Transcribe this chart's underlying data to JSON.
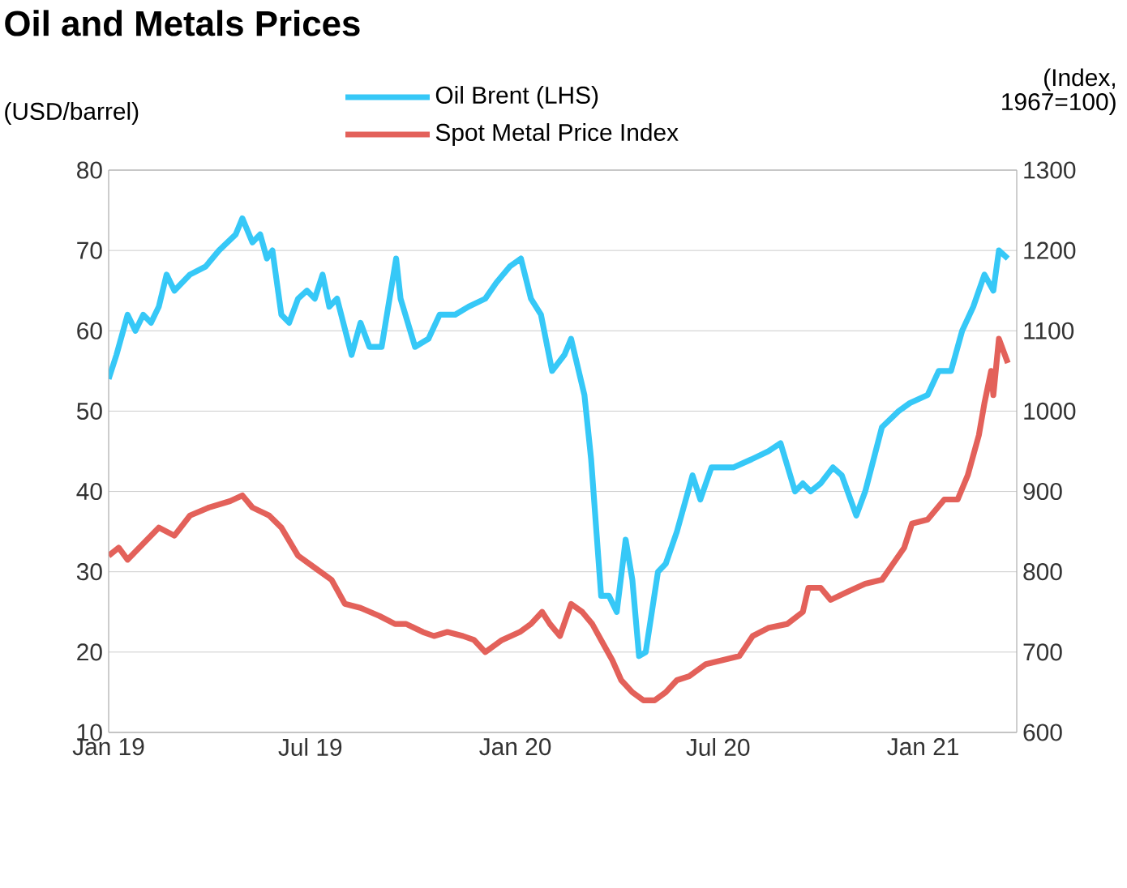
{
  "chart_data": {
    "type": "line",
    "title": "Oil and Metals Prices",
    "ylabel": "(USD/barrel)",
    "y2label": "(Index, 1967=100)",
    "legend": "top",
    "grid": "y",
    "xlim": [
      "2019-01-01",
      "2021-03-26"
    ],
    "xticks": [
      {
        "value": "2019-01-01",
        "label": "Jan 19"
      },
      {
        "value": "2019-07-01",
        "label": "Jul 19"
      },
      {
        "value": "2020-01-01",
        "label": "Jan 20"
      },
      {
        "value": "2020-07-01",
        "label": "Jul 20"
      },
      {
        "value": "2021-01-01",
        "label": "Jan 21"
      }
    ],
    "ylim": [
      10,
      80
    ],
    "yticks": [
      10,
      20,
      30,
      40,
      50,
      60,
      70,
      80
    ],
    "y2lim": [
      600,
      1300
    ],
    "y2ticks": [
      600,
      700,
      800,
      900,
      1000,
      1100,
      1200,
      1300
    ],
    "series": [
      {
        "name": "Oil Brent (LHS)",
        "color": "#36c8f7",
        "x": [
          "2019-01-01",
          "2019-01-08",
          "2019-01-18",
          "2019-01-25",
          "2019-02-01",
          "2019-02-08",
          "2019-02-15",
          "2019-02-22",
          "2019-03-01",
          "2019-03-15",
          "2019-03-29",
          "2019-04-10",
          "2019-04-25",
          "2019-05-01",
          "2019-05-10",
          "2019-05-17",
          "2019-05-23",
          "2019-05-28",
          "2019-06-05",
          "2019-06-12",
          "2019-06-20",
          "2019-06-28",
          "2019-07-05",
          "2019-07-12",
          "2019-07-18",
          "2019-07-25",
          "2019-08-07",
          "2019-08-15",
          "2019-08-23",
          "2019-09-03",
          "2019-09-16",
          "2019-09-20",
          "2019-10-03",
          "2019-10-15",
          "2019-10-25",
          "2019-11-08",
          "2019-11-20",
          "2019-12-05",
          "2019-12-15",
          "2019-12-27",
          "2020-01-06",
          "2020-01-15",
          "2020-01-24",
          "2020-02-03",
          "2020-02-14",
          "2020-02-20",
          "2020-03-03",
          "2020-03-09",
          "2020-03-18",
          "2020-03-25",
          "2020-04-01",
          "2020-04-09",
          "2020-04-15",
          "2020-04-21",
          "2020-04-27",
          "2020-05-08",
          "2020-05-15",
          "2020-05-25",
          "2020-06-08",
          "2020-06-15",
          "2020-06-25",
          "2020-07-15",
          "2020-07-31",
          "2020-08-15",
          "2020-08-26",
          "2020-09-08",
          "2020-09-15",
          "2020-09-22",
          "2020-10-01",
          "2020-10-12",
          "2020-10-20",
          "2020-11-02",
          "2020-11-10",
          "2020-11-25",
          "2020-12-10",
          "2020-12-20",
          "2021-01-05",
          "2021-01-15",
          "2021-01-26",
          "2021-02-05",
          "2021-02-15",
          "2021-02-25",
          "2021-03-05",
          "2021-03-10",
          "2021-03-18"
        ],
        "values": [
          54,
          57,
          62,
          60,
          62,
          61,
          63,
          67,
          65,
          67,
          68,
          70,
          72,
          74,
          71,
          72,
          69,
          70,
          62,
          61,
          64,
          65,
          64,
          67,
          63,
          64,
          57,
          61,
          58,
          58,
          69,
          64,
          58,
          59,
          62,
          62,
          63,
          64,
          66,
          68,
          69,
          64,
          62,
          55,
          57,
          59,
          52,
          44,
          27,
          27,
          25,
          34,
          29,
          19.5,
          20,
          30,
          31,
          35,
          42,
          39,
          43,
          43,
          44,
          45,
          46,
          40,
          41,
          40,
          41,
          43,
          42,
          37,
          40,
          48,
          50,
          51,
          52,
          55,
          55,
          60,
          63,
          67,
          65,
          70,
          69
        ]
      },
      {
        "name": "Spot Metal Price Index",
        "color": "#e3615a",
        "axis": "y2",
        "x": [
          "2019-01-01",
          "2019-01-10",
          "2019-01-18",
          "2019-02-01",
          "2019-02-15",
          "2019-03-01",
          "2019-03-15",
          "2019-04-01",
          "2019-04-20",
          "2019-05-01",
          "2019-05-10",
          "2019-05-25",
          "2019-06-05",
          "2019-06-20",
          "2019-07-05",
          "2019-07-20",
          "2019-08-01",
          "2019-08-15",
          "2019-09-01",
          "2019-09-15",
          "2019-09-25",
          "2019-10-10",
          "2019-10-20",
          "2019-11-01",
          "2019-11-15",
          "2019-11-25",
          "2019-12-05",
          "2019-12-20",
          "2020-01-05",
          "2020-01-15",
          "2020-01-25",
          "2020-02-01",
          "2020-02-10",
          "2020-02-20",
          "2020-03-01",
          "2020-03-10",
          "2020-03-20",
          "2020-03-28",
          "2020-04-05",
          "2020-04-15",
          "2020-04-25",
          "2020-05-05",
          "2020-05-15",
          "2020-05-25",
          "2020-06-05",
          "2020-06-20",
          "2020-07-05",
          "2020-07-20",
          "2020-08-01",
          "2020-08-15",
          "2020-09-01",
          "2020-09-15",
          "2020-09-20",
          "2020-10-01",
          "2020-10-10",
          "2020-10-25",
          "2020-11-10",
          "2020-11-25",
          "2020-12-05",
          "2020-12-15",
          "2020-12-22",
          "2021-01-05",
          "2021-01-20",
          "2021-02-01",
          "2021-02-10",
          "2021-02-20",
          "2021-02-25",
          "2021-03-03",
          "2021-03-05",
          "2021-03-10",
          "2021-03-18"
        ],
        "values": [
          820,
          830,
          815,
          835,
          855,
          845,
          870,
          880,
          888,
          895,
          880,
          870,
          855,
          820,
          805,
          790,
          760,
          755,
          745,
          735,
          735,
          725,
          720,
          725,
          720,
          715,
          700,
          715,
          725,
          735,
          750,
          735,
          720,
          760,
          750,
          735,
          710,
          690,
          665,
          650,
          640,
          640,
          650,
          665,
          670,
          685,
          690,
          695,
          720,
          730,
          735,
          750,
          780,
          780,
          765,
          775,
          785,
          790,
          810,
          830,
          860,
          865,
          890,
          890,
          920,
          970,
          1010,
          1050,
          1020,
          1090,
          1060
        ]
      }
    ]
  }
}
